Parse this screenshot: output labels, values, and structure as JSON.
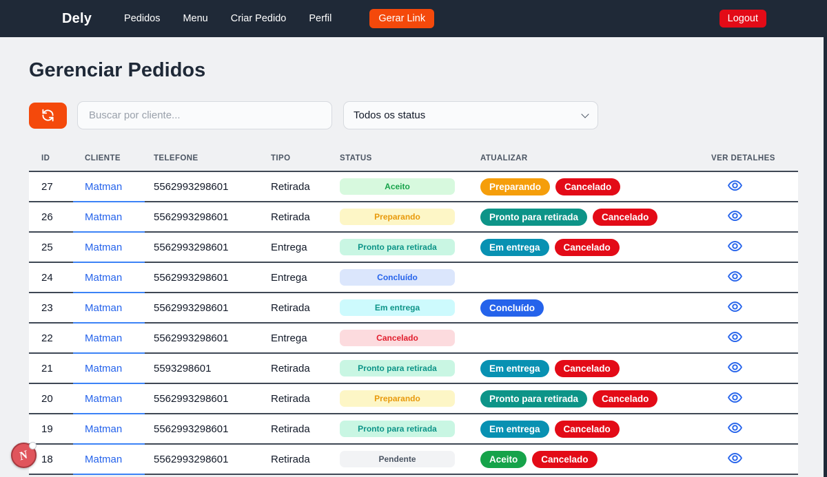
{
  "navbar": {
    "brand": "Dely",
    "links": [
      {
        "label": "Pedidos"
      },
      {
        "label": "Menu"
      },
      {
        "label": "Criar Pedido"
      },
      {
        "label": "Perfil"
      }
    ],
    "gerar_link_label": "Gerar Link",
    "logout_label": "Logout"
  },
  "page": {
    "title": "Gerenciar Pedidos",
    "search_placeholder": "Buscar por cliente...",
    "status_filter_selected": "Todos os status"
  },
  "table": {
    "headers": [
      "ID",
      "CLIENTE",
      "TELEFONE",
      "TIPO",
      "STATUS",
      "ATUALIZAR",
      "VER DETALHES"
    ],
    "rows": [
      {
        "id": "27",
        "cliente": "Matman",
        "telefone": "5562993298601",
        "tipo": "Retirada",
        "status": "Aceito",
        "actions": [
          "Preparando",
          "Cancelado"
        ]
      },
      {
        "id": "26",
        "cliente": "Matman",
        "telefone": "5562993298601",
        "tipo": "Retirada",
        "status": "Preparando",
        "actions": [
          "Pronto para retirada",
          "Cancelado"
        ]
      },
      {
        "id": "25",
        "cliente": "Matman",
        "telefone": "5562993298601",
        "tipo": "Entrega",
        "status": "Pronto para retirada",
        "actions": [
          "Em entrega",
          "Cancelado"
        ]
      },
      {
        "id": "24",
        "cliente": "Matman",
        "telefone": "5562993298601",
        "tipo": "Entrega",
        "status": "Concluído",
        "actions": []
      },
      {
        "id": "23",
        "cliente": "Matman",
        "telefone": "5562993298601",
        "tipo": "Retirada",
        "status": "Em entrega",
        "actions": [
          "Concluído"
        ]
      },
      {
        "id": "22",
        "cliente": "Matman",
        "telefone": "5562993298601",
        "tipo": "Entrega",
        "status": "Cancelado",
        "actions": []
      },
      {
        "id": "21",
        "cliente": "Matman",
        "telefone": "5593298601",
        "tipo": "Retirada",
        "status": "Pronto para retirada",
        "actions": [
          "Em entrega",
          "Cancelado"
        ]
      },
      {
        "id": "20",
        "cliente": "Matman",
        "telefone": "5562993298601",
        "tipo": "Retirada",
        "status": "Preparando",
        "actions": [
          "Pronto para retirada",
          "Cancelado"
        ]
      },
      {
        "id": "19",
        "cliente": "Matman",
        "telefone": "5562993298601",
        "tipo": "Retirada",
        "status": "Pronto para retirada",
        "actions": [
          "Em entrega",
          "Cancelado"
        ]
      },
      {
        "id": "18",
        "cliente": "Matman",
        "telefone": "5562993298601",
        "tipo": "Retirada",
        "status": "Pendente",
        "actions": [
          "Aceito",
          "Cancelado"
        ]
      }
    ]
  },
  "status_styles": {
    "Aceito": {
      "bg": "#d7f9de",
      "fg": "#17a34a"
    },
    "Preparando": {
      "bg": "#fdf6c6",
      "fg": "#e8990b"
    },
    "Pronto para retirada": {
      "bg": "#c9f6e3",
      "fg": "#0d9488"
    },
    "Concluído": {
      "bg": "#dbe6fc",
      "fg": "#2563eb"
    },
    "Em entrega": {
      "bg": "#cdfafd",
      "fg": "#0d9488"
    },
    "Cancelado": {
      "bg": "#fcdbde",
      "fg": "#e11d2d"
    },
    "Pendente": {
      "bg": "#f2f3f5",
      "fg": "#4b5563"
    }
  },
  "action_styles": {
    "Preparando": "#f59e0b",
    "Cancelado": "#e30b17",
    "Pronto para retirada": "#0d9488",
    "Em entrega": "#0891b2",
    "Concluído": "#2563eb",
    "Aceito": "#16a34a"
  },
  "colors": {
    "navbar_bg": "#1f2937",
    "accent_orange": "#f4490b",
    "danger_red": "#e30b17",
    "link_blue": "#2563eb",
    "row_border": "#3e4754",
    "cliente_border_blue": "#3b82f6",
    "page_bg": "#f0f1f3"
  },
  "floating_badge": {
    "letter": "N"
  }
}
